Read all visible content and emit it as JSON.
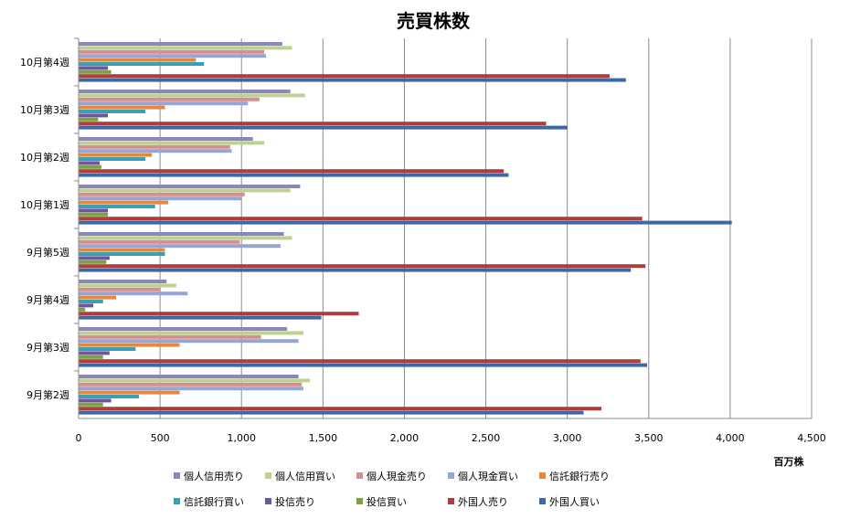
{
  "chart_data": {
    "type": "bar",
    "orientation": "horizontal",
    "title": "売買株数",
    "xlabel": "百万株",
    "xlim": [
      0,
      4500
    ],
    "xticks": [
      0,
      500,
      1000,
      1500,
      2000,
      2500,
      3000,
      3500,
      4000,
      4500
    ],
    "xtick_labels": [
      "0",
      "500",
      "1,000",
      "1,500",
      "2,000",
      "2,500",
      "3,000",
      "3,500",
      "4,000",
      "4,500"
    ],
    "grid": "vertical",
    "legend_position": "bottom",
    "categories": [
      "9月第2週",
      "9月第3週",
      "9月第4週",
      "9月第5週",
      "10月第1週",
      "10月第2週",
      "10月第3週",
      "10月第4週"
    ],
    "series": [
      {
        "name": "個人信用売り",
        "color": "#8B87BD",
        "values": [
          1350,
          1280,
          540,
          1260,
          1360,
          1070,
          1300,
          1250
        ]
      },
      {
        "name": "個人信用買い",
        "color": "#BDD290",
        "values": [
          1420,
          1380,
          600,
          1310,
          1300,
          1140,
          1390,
          1310
        ]
      },
      {
        "name": "個人現金売り",
        "color": "#D48F8E",
        "values": [
          1370,
          1120,
          500,
          990,
          1020,
          930,
          1110,
          1140
        ]
      },
      {
        "name": "個人現金買い",
        "color": "#95A6D4",
        "values": [
          1380,
          1350,
          670,
          1240,
          1000,
          940,
          1040,
          1150
        ]
      },
      {
        "name": "信託銀行売り",
        "color": "#E8873A",
        "values": [
          620,
          620,
          230,
          530,
          550,
          450,
          530,
          720
        ]
      },
      {
        "name": "信託銀行買い",
        "color": "#36A1B5",
        "values": [
          370,
          350,
          150,
          530,
          470,
          410,
          410,
          770
        ]
      },
      {
        "name": "投信売り",
        "color": "#6D56A0",
        "values": [
          200,
          190,
          90,
          190,
          180,
          130,
          180,
          180
        ]
      },
      {
        "name": "投信買い",
        "color": "#7FA13F",
        "values": [
          150,
          150,
          40,
          170,
          180,
          140,
          120,
          200
        ]
      },
      {
        "name": "外国人売り",
        "color": "#B23C3C",
        "values": [
          3210,
          3450,
          1720,
          3480,
          3460,
          2610,
          2870,
          3260
        ]
      },
      {
        "name": "外国人買い",
        "color": "#3C69A3",
        "values": [
          3100,
          3490,
          1490,
          3390,
          4010,
          2640,
          3000,
          3360
        ]
      }
    ]
  }
}
